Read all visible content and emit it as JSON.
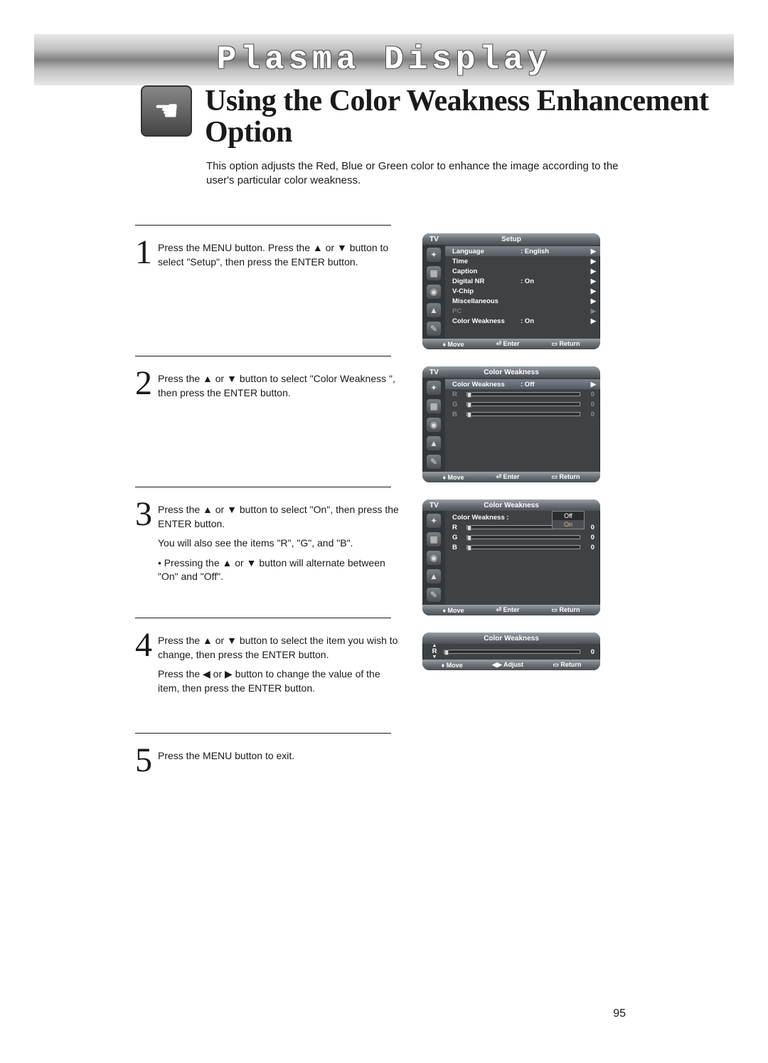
{
  "header": {
    "brand": "Plasma Display"
  },
  "title": "Using the Color Weakness Enhancement Option",
  "description": "This option adjusts the Red, Blue or Green color to enhance the image according to the user's particular color weakness.",
  "page_number": "95",
  "steps": [
    {
      "n": "1",
      "text": [
        "Press the MENU button. Press the ▲ or ▼ button to select \"Setup\", then press the ENTER button."
      ]
    },
    {
      "n": "2",
      "text": [
        "Press the ▲ or ▼ button to select \"Color Weakness \", then press the ENTER button."
      ]
    },
    {
      "n": "3",
      "text": [
        "Press the ▲ or ▼ button to select \"On\", then press the ENTER button.",
        "You will also see the items \"R\", \"G\", and \"B\".",
        "• Pressing the ▲ or ▼ button will alternate between \"On\" and \"Off\"."
      ]
    },
    {
      "n": "4",
      "text": [
        "Press the ▲ or ▼ button to select the item you wish to change, then press the ENTER button.",
        "Press the ◀ or ▶ button to change the value of the item, then press the ENTER button."
      ]
    },
    {
      "n": "5",
      "text": [
        "Press the MENU button to exit."
      ]
    }
  ],
  "osd_footer": {
    "move": "Move",
    "enter": "Enter",
    "ret": "Return",
    "adjust": "Adjust"
  },
  "osd_arrows": {
    "updown": "♦",
    "enter_glyph": "⏎",
    "ret_glyph": "▭",
    "lr": "◀▶",
    "right": "▶"
  },
  "colors": {
    "page_bg": "#ffffff",
    "text": "#1a1a1a",
    "banner_grad": [
      "#e8e8e8",
      "#c0c0c0",
      "#808080"
    ],
    "osd_bg": "#3f4245",
    "osd_sidebar": "#34373a",
    "osd_title_grad": [
      "#9aa0a6",
      "#6b7075",
      "#4c5054"
    ],
    "osd_row_sel_grad": [
      "#7c818a",
      "#565b63"
    ],
    "osd_dim": "#7d8083",
    "highlight_text": "#e8c070"
  },
  "screen1": {
    "left": "TV",
    "title": "Setup",
    "rows": [
      {
        "label": "Language",
        "value": ": English",
        "sel": true,
        "arrow": true
      },
      {
        "label": "Time",
        "value": "",
        "arrow": true
      },
      {
        "label": "Caption",
        "value": "",
        "arrow": true
      },
      {
        "label": "Digital NR",
        "value": ": On",
        "arrow": true
      },
      {
        "label": "V-Chip",
        "value": "",
        "arrow": true
      },
      {
        "label": "Miscellaneous",
        "value": "",
        "arrow": true
      },
      {
        "label": "PC",
        "value": "",
        "dim": true,
        "arrow": true
      },
      {
        "label": "Color Weakness",
        "value": ": On",
        "arrow": true
      }
    ]
  },
  "screen2": {
    "left": "TV",
    "title": "Color Weakness",
    "cw_row": {
      "label": "Color Weakness",
      "value": ": Off",
      "sel": true,
      "arrow": true
    },
    "sliders": [
      {
        "l": "R",
        "v": "0",
        "dim": true
      },
      {
        "l": "G",
        "v": "0",
        "dim": true
      },
      {
        "l": "B",
        "v": "0",
        "dim": true
      }
    ]
  },
  "screen3": {
    "left": "TV",
    "title": "Color Weakness",
    "cw_label": "Color Weakness   :",
    "dropdown": [
      "Off",
      "On"
    ],
    "sliders": [
      {
        "l": "R",
        "v": "0"
      },
      {
        "l": "G",
        "v": "0"
      },
      {
        "l": "B",
        "v": "0"
      }
    ]
  },
  "screen4": {
    "title": "Color Weakness",
    "slider": {
      "l": "R",
      "v": "0"
    }
  }
}
